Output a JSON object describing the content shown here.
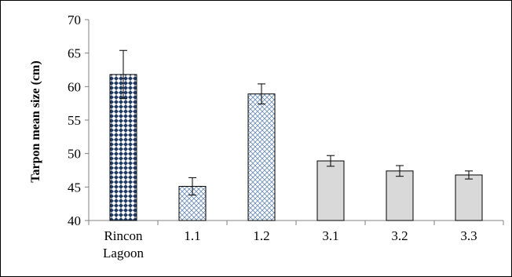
{
  "chart_data": {
    "type": "bar",
    "title": "",
    "xlabel": "",
    "ylabel": "Tarpon mean size (cm)",
    "ylim": [
      40,
      70
    ],
    "yticks": [
      40,
      45,
      50,
      55,
      60,
      65,
      70
    ],
    "categories": [
      "Rincon Lagoon",
      "1.1",
      "1.2",
      "3.1",
      "3.2",
      "3.3"
    ],
    "category_lines": [
      [
        "Rincon",
        "Lagoon"
      ],
      [
        "1.1"
      ],
      [
        "1.2"
      ],
      [
        "3.1"
      ],
      [
        "3.2"
      ],
      [
        "3.3"
      ]
    ],
    "values": [
      61.8,
      45.1,
      58.9,
      48.9,
      47.4,
      46.8
    ],
    "error_bars": [
      3.6,
      1.3,
      1.5,
      0.8,
      0.8,
      0.6
    ],
    "bar_fills": [
      "diamond-pattern-navy",
      "crosshatch-pattern-light-blue",
      "crosshatch-pattern-light-blue",
      "solid-light-gray",
      "solid-light-gray",
      "solid-light-gray"
    ],
    "grid": false,
    "legend": "none"
  },
  "colors": {
    "navy": "#1f3864",
    "crosshatch_line": "#6f8fb5",
    "gray_fill": "#d9d9d9",
    "axis": "#808080"
  }
}
